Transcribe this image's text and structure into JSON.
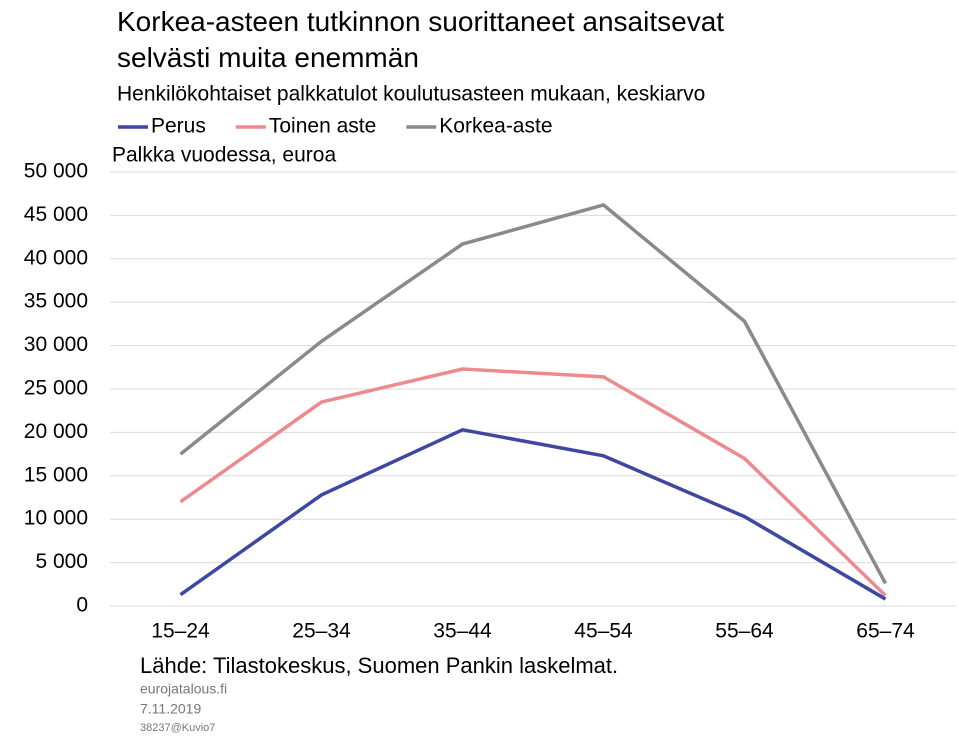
{
  "chart_data": {
    "type": "line",
    "title": "Korkea-asteen tutkinnon suorittaneet ansaitsevat selvästi muita enemmän",
    "subtitle": "Henkilökohtaiset palkkatulot koulutusasteen mukaan, keskiarvo",
    "y_label": "Palkka vuodessa, euroa",
    "source": "Lähde: Tilastokeskus, Suomen Pankin laskelmat.",
    "footnotes": [
      "eurojatalous.fi",
      "7.11.2019",
      "38237@Kuvio7"
    ],
    "categories": [
      "15–24",
      "25–34",
      "35–44",
      "45–54",
      "55–64",
      "65–74"
    ],
    "series": [
      {
        "name": "Perus",
        "color": "#3f48a0",
        "values": [
          1300,
          12800,
          20300,
          17300,
          10300,
          800
        ]
      },
      {
        "name": "Toinen aste",
        "color": "#ec8a8e",
        "values": [
          12000,
          23500,
          27300,
          26400,
          17000,
          1200
        ]
      },
      {
        "name": "Korkea-aste",
        "color": "#8a8a8a",
        "values": [
          17500,
          30500,
          41700,
          46200,
          32800,
          2600
        ]
      }
    ],
    "ylim": [
      0,
      50000
    ],
    "yticks": [
      0,
      {
        "value": 5000,
        "label": "5 000"
      },
      {
        "value": 10000,
        "label": "10 000"
      },
      {
        "value": 15000,
        "label": "15 000"
      },
      {
        "value": 20000,
        "label": "20 000"
      },
      {
        "value": 25000,
        "label": "25 000"
      },
      {
        "value": 30000,
        "label": "30 000"
      },
      {
        "value": 35000,
        "label": "35 000"
      },
      {
        "value": 40000,
        "label": "40 000"
      },
      {
        "value": 45000,
        "label": "45 000"
      },
      {
        "value": 50000,
        "label": "50 000"
      }
    ],
    "grid": true
  }
}
